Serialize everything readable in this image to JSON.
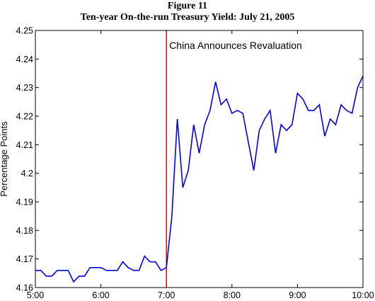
{
  "figure_number": "Figure 11",
  "chart_data": {
    "type": "line",
    "title": "Ten-year On-the-run Treasury Yield: July 21, 2005",
    "xlabel": "",
    "ylabel": "Percentage Points",
    "xlim": [
      5,
      10
    ],
    "ylim": [
      4.16,
      4.25
    ],
    "x_ticks": [
      5,
      6,
      7,
      8,
      9,
      10
    ],
    "x_tick_labels": [
      "5:00",
      "6:00",
      "7:00",
      "8:00",
      "9:00",
      "10:00"
    ],
    "y_ticks": [
      4.16,
      4.17,
      4.18,
      4.19,
      4.2,
      4.21,
      4.22,
      4.23,
      4.24,
      4.25
    ],
    "y_tick_labels": [
      "4.16",
      "4.17",
      "4.18",
      "4.19",
      "4.2",
      "4.21",
      "4.22",
      "4.23",
      "4.24",
      "4.25"
    ],
    "grid": false,
    "line_color": "#0000ee",
    "marker_color": "#cc0000",
    "annotation": {
      "text": "China Announces Revaluation",
      "x": 7.0
    },
    "series": [
      {
        "x": [
          5.0,
          5.0833,
          5.1667,
          5.25,
          5.3333,
          5.4167,
          5.5,
          5.5833,
          5.6667,
          5.75,
          5.8333,
          5.9167,
          6.0,
          6.0833,
          6.1667,
          6.25,
          6.3333,
          6.4167,
          6.5,
          6.5833,
          6.6667,
          6.75,
          6.8333,
          6.9167,
          7.0,
          7.0833,
          7.1667,
          7.25,
          7.3333,
          7.4167,
          7.5,
          7.5833,
          7.6667,
          7.75,
          7.8333,
          7.9167,
          8.0,
          8.0833,
          8.1667,
          8.25,
          8.3333,
          8.4167,
          8.5,
          8.5833,
          8.6667,
          8.75,
          8.8333,
          8.9167,
          9.0,
          9.0833,
          9.1667,
          9.25,
          9.3333,
          9.4167,
          9.5,
          9.5833,
          9.6667,
          9.75,
          9.8333,
          9.9167,
          10.0
        ],
        "y": [
          4.166,
          4.166,
          4.164,
          4.164,
          4.166,
          4.166,
          4.166,
          4.162,
          4.164,
          4.164,
          4.167,
          4.167,
          4.167,
          4.166,
          4.166,
          4.166,
          4.169,
          4.167,
          4.166,
          4.166,
          4.171,
          4.169,
          4.169,
          4.166,
          4.167,
          4.185,
          4.219,
          4.195,
          4.201,
          4.217,
          4.207,
          4.217,
          4.222,
          4.232,
          4.224,
          4.226,
          4.221,
          4.222,
          4.221,
          4.211,
          4.201,
          4.215,
          4.219,
          4.222,
          4.207,
          4.217,
          4.215,
          4.217,
          4.228,
          4.226,
          4.222,
          4.222,
          4.224,
          4.213,
          4.219,
          4.217,
          4.224,
          4.222,
          4.221,
          4.23,
          4.234
        ]
      }
    ]
  }
}
